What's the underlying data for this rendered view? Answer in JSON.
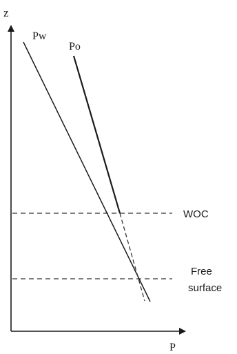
{
  "axes": {
    "y_label": "z",
    "x_label": "P"
  },
  "lines": {
    "water_label": "Pw",
    "oil_label": "Po"
  },
  "levels": {
    "woc_label": "WOC",
    "free_surface_line1": "Free",
    "free_surface_line2": "surface"
  },
  "colors": {
    "ink": "#1a1a1a",
    "background": "#ffffff"
  }
}
